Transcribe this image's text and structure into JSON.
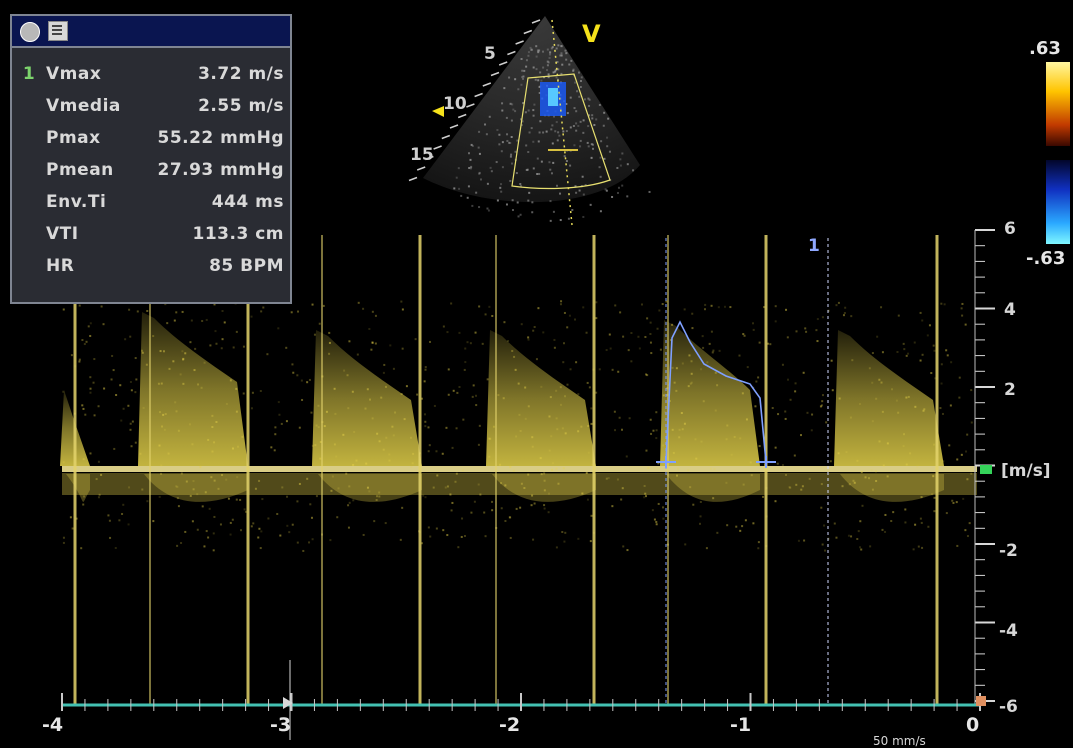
{
  "measurements": {
    "index": "1",
    "rows": [
      {
        "label": "Vmax",
        "value": "3.72 m/s"
      },
      {
        "label": "Vmedia",
        "value": "2.55 m/s"
      },
      {
        "label": "Pmax",
        "value": "55.22 mmHg"
      },
      {
        "label": "Pmean",
        "value": "27.93 mmHg"
      },
      {
        "label": "Env.Ti",
        "value": "444 ms"
      },
      {
        "label": "VTI",
        "value": "113.3 cm"
      },
      {
        "label": "HR",
        "value": "85 BPM"
      }
    ]
  },
  "sector": {
    "mode_label": "V",
    "depth_labels": [
      "5",
      "10",
      "15"
    ]
  },
  "color_scale": {
    "top": ".63",
    "bottom": "-.63",
    "colors": {
      "positive": "#ffcc00",
      "negative": "#1e6eff"
    }
  },
  "velocity_axis": {
    "unit": "[m/s]",
    "labels": [
      "6",
      "4",
      "2",
      "-2",
      "-4",
      "-6"
    ]
  },
  "time_axis": {
    "labels": [
      "-4",
      "-3",
      "-2",
      "-1",
      "0"
    ],
    "sweep": "50 mm/s"
  },
  "trace_marker": "1",
  "doppler_color": "#e8d44a"
}
